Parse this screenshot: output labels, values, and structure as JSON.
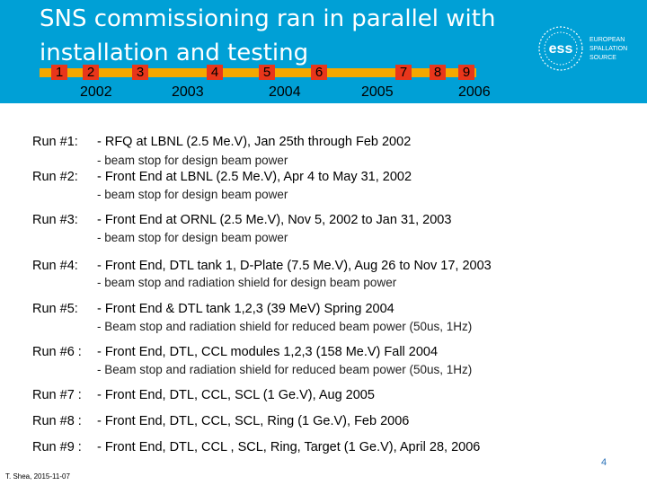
{
  "title": {
    "line1": "SNS commissioning ran in parallel with",
    "line2": "installation and testing"
  },
  "timeline": {
    "markers": [
      "1",
      "2",
      "3",
      "4",
      "5",
      "6",
      "7",
      "8",
      "9"
    ],
    "years": [
      "2002",
      "2003",
      "2004",
      "2005",
      "2006"
    ]
  },
  "logo": {
    "mark": "ess",
    "line1": "EUROPEAN",
    "line2": "SPALLATION",
    "line3": "SOURCE"
  },
  "runs": [
    {
      "label": "Run #1:",
      "main": "- RFQ at LBNL (2.5 Me.V), Jan 25th through Feb 2002",
      "sub": "- beam stop for design beam power"
    },
    {
      "label": "Run #2:",
      "main": "- Front End at LBNL (2.5 Me.V), Apr 4 to May 31, 2002",
      "sub": "- beam stop for design beam power"
    },
    {
      "label": "Run #3:",
      "main": "- Front End at ORNL (2.5 Me.V), Nov 5, 2002 to Jan 31, 2003",
      "sub": "- beam stop for design beam power"
    },
    {
      "label": "Run #4:",
      "main": "- Front End, DTL tank 1, D-Plate (7.5 Me.V), Aug 26 to Nov 17, 2003",
      "sub": "- beam stop and radiation shield for design beam power"
    },
    {
      "label": "Run #5:",
      "main": "- Front End & DTL tank 1,2,3 (39 MeV) Spring 2004",
      "sub": "- Beam stop and radiation shield for reduced beam power (50us, 1Hz)"
    },
    {
      "label": "Run #6 :",
      "main": "- Front End, DTL, CCL modules 1,2,3 (158 Me.V) Fall 2004",
      "sub": "- Beam stop and radiation shield for reduced beam power (50us, 1Hz)"
    },
    {
      "label": "Run #7 :",
      "main": "- Front End, DTL, CCL, SCL (1 Ge.V),  Aug 2005"
    },
    {
      "label": "Run #8 :",
      "main": "- Front End, DTL, CCL, SCL, Ring (1 Ge.V), Feb 2006"
    },
    {
      "label": "Run #9 :",
      "main": "- Front End, DTL, CCL , SCL, Ring, Target (1 Ge.V), April 28, 2006"
    }
  ],
  "footer": {
    "author": "T. Shea, 2015-11-07",
    "page": "4"
  },
  "colors": {
    "header_bg": "#00a0d6",
    "timeline_bar": "#f5a800",
    "marker": "#e8361b"
  }
}
